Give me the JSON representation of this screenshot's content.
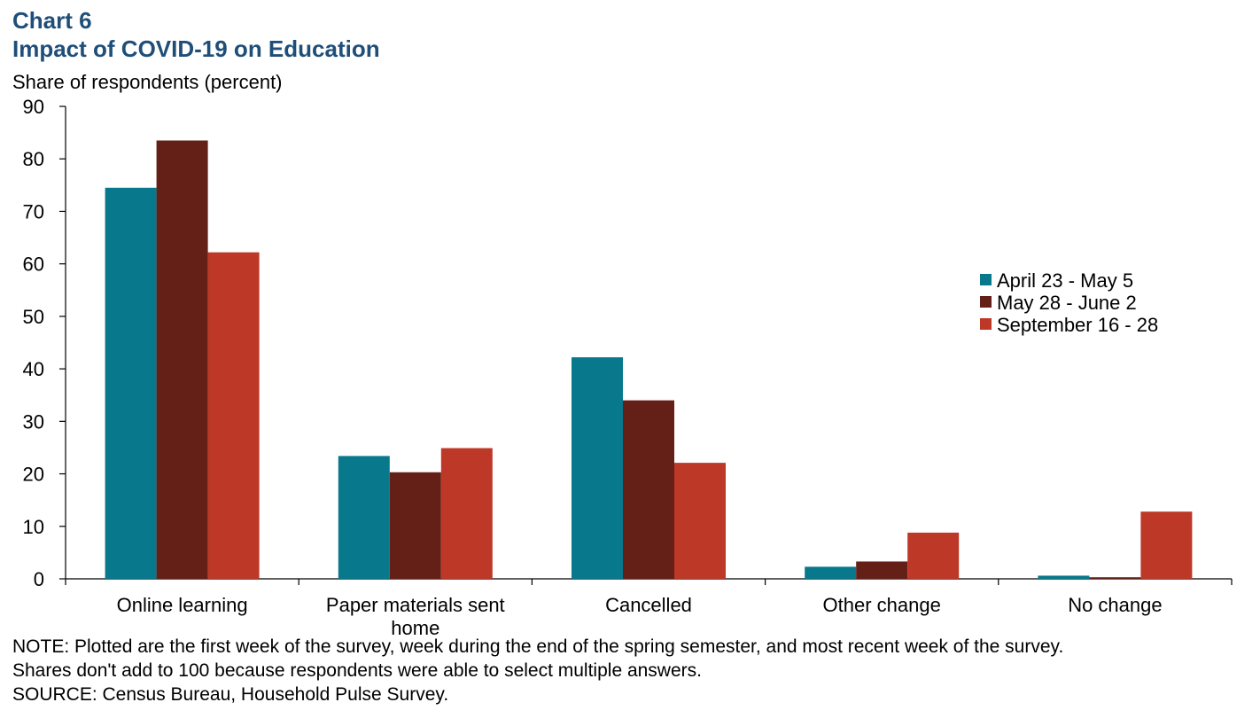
{
  "header": {
    "chart_number": "Chart 6",
    "title": "Impact of COVID-19 on Education"
  },
  "colors": {
    "title": "#1f4e79",
    "series": [
      "#08788c",
      "#641f16",
      "#bd3827"
    ]
  },
  "chart_data": {
    "type": "bar",
    "title": "Impact of COVID-19 on Education",
    "ylabel": "Share of respondents (percent)",
    "xlabel": "",
    "ylim": [
      0,
      90
    ],
    "yticks": [
      0,
      10,
      20,
      30,
      40,
      50,
      60,
      70,
      80,
      90
    ],
    "grid": false,
    "legend_position": "right",
    "categories": [
      "Online learning",
      "Paper materials sent home",
      "Cancelled",
      "Other change",
      "No change"
    ],
    "category_label_lines": [
      [
        "Online learning"
      ],
      [
        "Paper materials sent",
        "home"
      ],
      [
        "Cancelled"
      ],
      [
        "Other change"
      ],
      [
        "No change"
      ]
    ],
    "series": [
      {
        "name": "April 23 - May 5",
        "values": [
          74.5,
          23.4,
          42.2,
          2.3,
          0.6
        ]
      },
      {
        "name": "May 28 - June 2",
        "values": [
          83.5,
          20.3,
          34.0,
          3.3,
          0.3
        ]
      },
      {
        "name": "September 16 - 28",
        "values": [
          62.2,
          24.9,
          22.1,
          8.8,
          12.8
        ]
      }
    ]
  },
  "footer": {
    "note_line1": "NOTE: Plotted are the first week of the survey, week during the end of the spring semester, and most recent week of the survey.",
    "note_line2": "Shares don't add to 100 because respondents were able to select multiple answers.",
    "source": "SOURCE: Census Bureau, Household Pulse Survey."
  }
}
